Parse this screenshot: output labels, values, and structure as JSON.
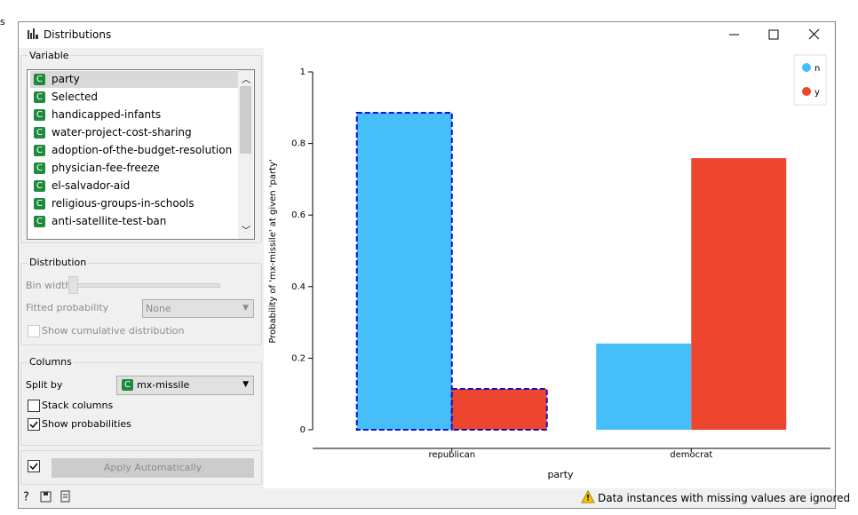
{
  "corner_text": "s",
  "window": {
    "title": "Distributions"
  },
  "variable_box": {
    "title": "Variable",
    "icon": "C",
    "items": [
      "party",
      "Selected",
      "handicapped-infants",
      "water-project-cost-sharing",
      "adoption-of-the-budget-resolution",
      "physician-fee-freeze",
      "el-salvador-aid",
      "religious-groups-in-schools",
      "anti-satellite-test-ban"
    ]
  },
  "distribution_box": {
    "title": "Distribution",
    "bin_width_label": "Bin width",
    "fitted_label": "Fitted probability",
    "fitted_value": "None",
    "cumulative_label": "Show cumulative distribution",
    "cumulative_checked": false
  },
  "columns_box": {
    "title": "Columns",
    "split_by_label": "Split by",
    "split_by_value": "mx-missile",
    "stack_label": "Stack columns",
    "stack_checked": false,
    "probabilities_label": "Show probabilities",
    "probabilities_checked": true
  },
  "apply": {
    "checked": true,
    "label": "Apply Automatically"
  },
  "status": "Data instances with missing values are ignored",
  "chart_data": {
    "type": "bar",
    "x_label": "party",
    "y_label": "Probability of 'mx-missile' at given 'party'",
    "categories": [
      "republican",
      "democrat"
    ],
    "series": [
      {
        "name": "n",
        "color": "#46befa",
        "values": [
          0.886,
          0.241
        ]
      },
      {
        "name": "y",
        "color": "#ed462f",
        "values": [
          0.114,
          0.759
        ]
      }
    ],
    "ylim": [
      0,
      1
    ],
    "yticks": [
      0,
      0.2,
      0.4,
      0.6,
      0.8,
      1
    ],
    "legend": "top-right",
    "selected_index": 0
  }
}
